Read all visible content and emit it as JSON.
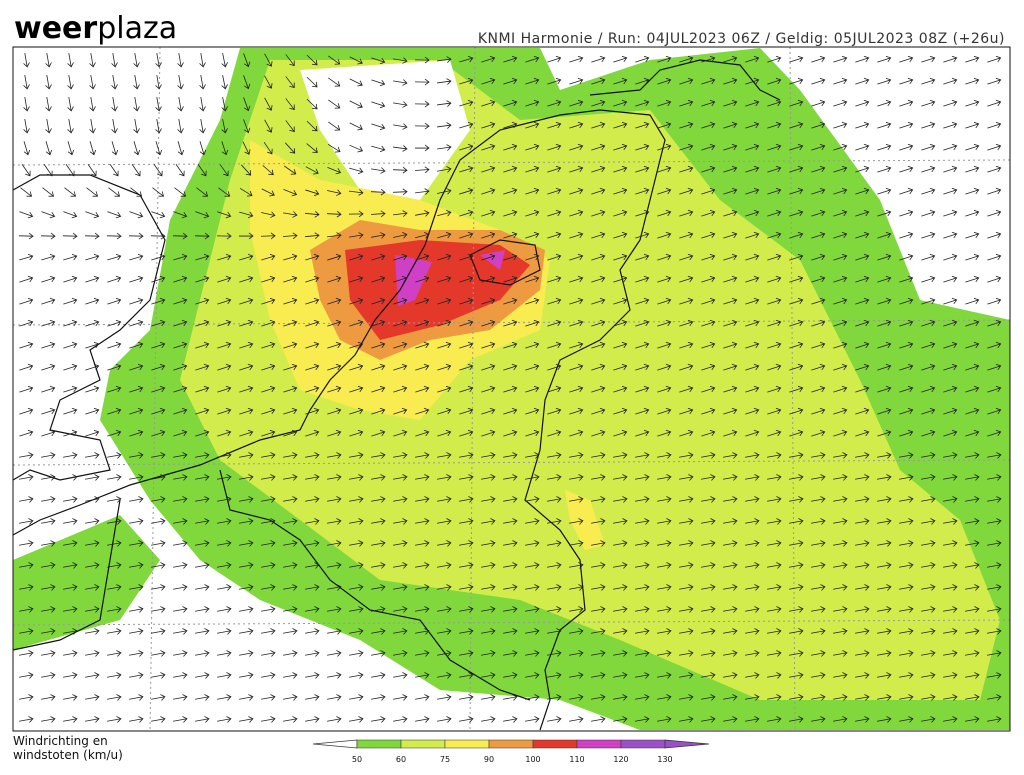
{
  "logo": {
    "bold": "weer",
    "light": "plaza"
  },
  "header": {
    "info": "KNMI Harmonie / Run: 04JUL2023 06Z / Geldig: 05JUL2023 08Z (+26u)"
  },
  "legend": {
    "title_line1": "Windrichting en",
    "title_line2": "windstoten (km/u)",
    "ticks": [
      50,
      60,
      75,
      90,
      100,
      110,
      120,
      130
    ],
    "colors": [
      "#80d83c",
      "#d2ec4c",
      "#f8ec50",
      "#ee9a40",
      "#e4392a",
      "#d040c4",
      "#9c50c8"
    ]
  }
}
